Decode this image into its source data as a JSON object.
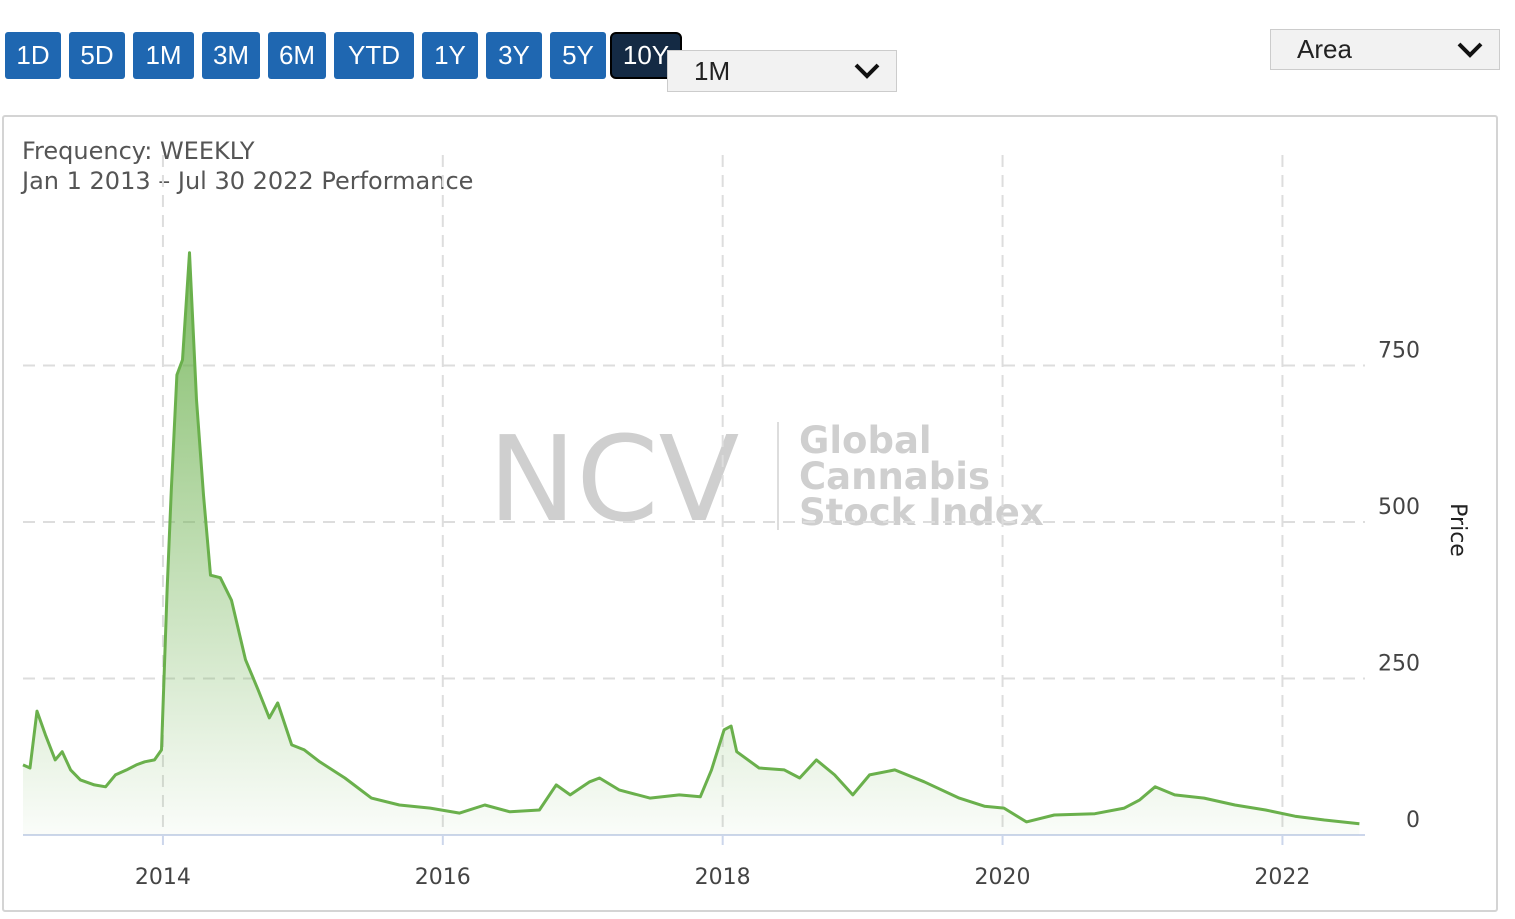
{
  "toolbar": {
    "ranges": [
      "1D",
      "5D",
      "1M",
      "3M",
      "6M",
      "YTD",
      "1Y",
      "3Y",
      "5Y",
      "10Y"
    ],
    "active_range": "10Y",
    "interval": "1M",
    "chart_style": "Area"
  },
  "watermark": {
    "logo": "NCV",
    "lines": [
      "Global",
      "Cannabis",
      "Stock Index"
    ]
  },
  "chart_data": {
    "type": "area",
    "subtitle": [
      "Frequency: WEEKLY",
      "Jan 1 2013 – Jul 30 2022 Performance"
    ],
    "y_label": "Price",
    "color": "#6ab04c",
    "x": [
      2013.0,
      2013.05,
      2013.1,
      2013.16,
      2013.23,
      2013.28,
      2013.34,
      2013.41,
      2013.51,
      2013.59,
      2013.66,
      2013.74,
      2013.81,
      2013.87,
      2013.94,
      2013.99,
      2014.03,
      2014.06,
      2014.1,
      2014.14,
      2014.19,
      2014.24,
      2014.29,
      2014.34,
      2014.41,
      2014.49,
      2014.59,
      2014.68,
      2014.76,
      2014.82,
      2014.92,
      2015.01,
      2015.12,
      2015.3,
      2015.49,
      2015.69,
      2015.91,
      2016.12,
      2016.3,
      2016.48,
      2016.69,
      2016.81,
      2016.91,
      2017.05,
      2017.12,
      2017.26,
      2017.48,
      2017.69,
      2017.84,
      2017.92,
      2018.01,
      2018.06,
      2018.1,
      2018.26,
      2018.44,
      2018.55,
      2018.67,
      2018.8,
      2018.93,
      2019.05,
      2019.23,
      2019.44,
      2019.69,
      2019.87,
      2020.01,
      2020.17,
      2020.37,
      2020.66,
      2020.87,
      2020.98,
      2021.09,
      2021.23,
      2021.44,
      2021.66,
      2021.88,
      2022.09,
      2022.3,
      2022.55
    ],
    "values": [
      112,
      107,
      198,
      160,
      120,
      133,
      104,
      88,
      80,
      77,
      96,
      104,
      112,
      117,
      120,
      136,
      391,
      551,
      735,
      759,
      930,
      695,
      543,
      415,
      411,
      375,
      280,
      232,
      187,
      211,
      144,
      136,
      117,
      91,
      59,
      48,
      43,
      35,
      48,
      37,
      40,
      80,
      64,
      85,
      91,
      72,
      59,
      64,
      61,
      104,
      168,
      174,
      133,
      107,
      104,
      91,
      120,
      96,
      64,
      96,
      104,
      85,
      59,
      46,
      43,
      21,
      32,
      34,
      43,
      56,
      77,
      64,
      59,
      48,
      40,
      30,
      24,
      18
    ],
    "xlim": [
      2013,
      2022.59
    ],
    "xticks": [
      2014,
      2016,
      2018,
      2020,
      2022
    ],
    "ylim": [
      0,
      1000
    ],
    "yticks": [
      0,
      250,
      500,
      750
    ],
    "grid": true
  }
}
